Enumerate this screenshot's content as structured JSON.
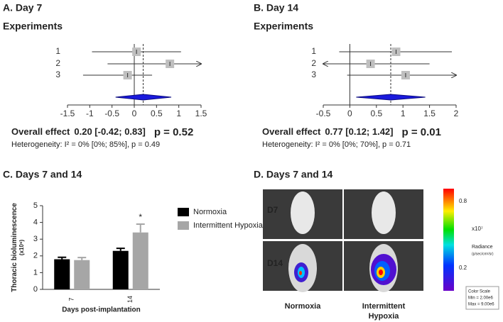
{
  "chart_data": [
    {
      "type": "forest",
      "title": "A. Day 7",
      "subtitle": "Experiments",
      "categories": [
        "1",
        "2",
        "3"
      ],
      "values": [
        0.05,
        0.8,
        -0.15
      ],
      "ci_low": [
        -0.95,
        -0.6,
        -1.15
      ],
      "ci_high": [
        1.05,
        1.6,
        0.4
      ],
      "xlim": [
        -1.5,
        1.5
      ],
      "xticks": [
        -1.5,
        -1,
        -0.5,
        0,
        0.5,
        1,
        1.5
      ],
      "overall": {
        "name": "Overall effect",
        "estimate": 0.2,
        "low": -0.42,
        "high": 0.83,
        "value_label": "0.20  [-0.42; 0.83]",
        "p": "p = 0.52"
      },
      "heterogeneity": "Heterogeneity: I² = 0% [0%; 85%], p = 0.49",
      "color": "#1a1adc"
    },
    {
      "type": "forest",
      "title": "B. Day 14",
      "subtitle": "Experiments",
      "categories": [
        "1",
        "2",
        "3"
      ],
      "values": [
        0.87,
        0.39,
        1.05
      ],
      "ci_low": [
        -0.2,
        -0.6,
        -0.05
      ],
      "ci_high": [
        1.92,
        1.5,
        2.1
      ],
      "xlim": [
        -0.5,
        2
      ],
      "xticks": [
        -0.5,
        0,
        0.5,
        1,
        1.5,
        2
      ],
      "overall": {
        "name": "Overall effect",
        "estimate": 0.77,
        "low": 0.12,
        "high": 1.42,
        "value_label": "0.77  [0.12; 1.42]",
        "p": "p = 0.01"
      },
      "heterogeneity": "Heterogeneity: I² = 0% [0%; 70%], p = 0.71",
      "color": "#1a1adc"
    },
    {
      "type": "bar",
      "title": "C. Days 7 and 14",
      "x_label": "Days post-implantation",
      "y_label": "Thoracic bioluminescence",
      "y_unit": "(x10⁶)",
      "categories": [
        "7",
        "14"
      ],
      "series": [
        {
          "name": "Normoxia",
          "color": "#000000",
          "values": [
            1.8,
            2.3
          ],
          "errors": [
            0.12,
            0.15
          ]
        },
        {
          "name": "Intermittent Hypoxia",
          "color": "#a6a6a6",
          "values": [
            1.75,
            3.4
          ],
          "errors": [
            0.15,
            0.5
          ]
        }
      ],
      "annotation": "*",
      "ylim": [
        0,
        5
      ],
      "yticks": [
        0,
        1,
        2,
        3,
        4,
        5
      ]
    }
  ],
  "image_panel": {
    "title": "D. Days 7 and 14",
    "rows": [
      "D7",
      "D14"
    ],
    "columns": [
      "Normoxia",
      "Intermittent",
      "Hypoxia"
    ],
    "scale_ticks": [
      "0.8",
      "0.2"
    ],
    "scale_exponent": "x10⁷",
    "scale_title": "Radiance",
    "scale_unit": "(p/sec/cm²/sr)",
    "scale_box": [
      "Color Scale",
      "Min = 2.00e6",
      "Max = 9.00e6"
    ]
  }
}
